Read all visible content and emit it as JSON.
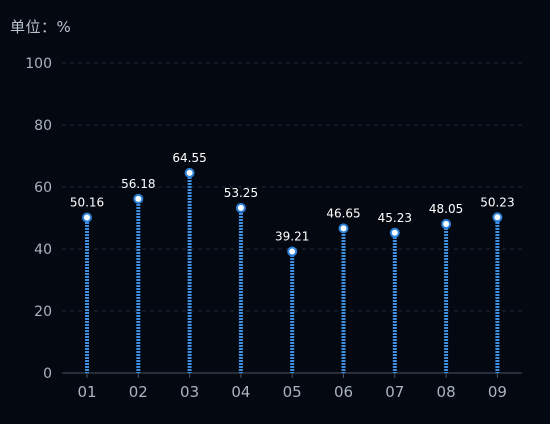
{
  "chart_data": {
    "type": "bar",
    "unit_label": "单位：%",
    "categories": [
      "01",
      "02",
      "03",
      "04",
      "05",
      "06",
      "07",
      "08",
      "09"
    ],
    "series": [
      {
        "values": [
          50.16,
          56.18,
          64.55,
          53.25,
          39.21,
          46.65,
          45.23,
          48.05,
          50.23
        ]
      }
    ],
    "ylim": [
      0,
      100
    ],
    "yticks": [
      "0",
      "20",
      "40",
      "60",
      "80",
      "100"
    ],
    "grid": true,
    "colors": {
      "background": "#040810",
      "bar": "#3f8fe0",
      "marker_fill": "#ffffff",
      "marker_stroke": "#2d7fd8",
      "axis_text": "#aab3c0",
      "grid": "#1f2a38",
      "label": "#ffffff"
    }
  }
}
